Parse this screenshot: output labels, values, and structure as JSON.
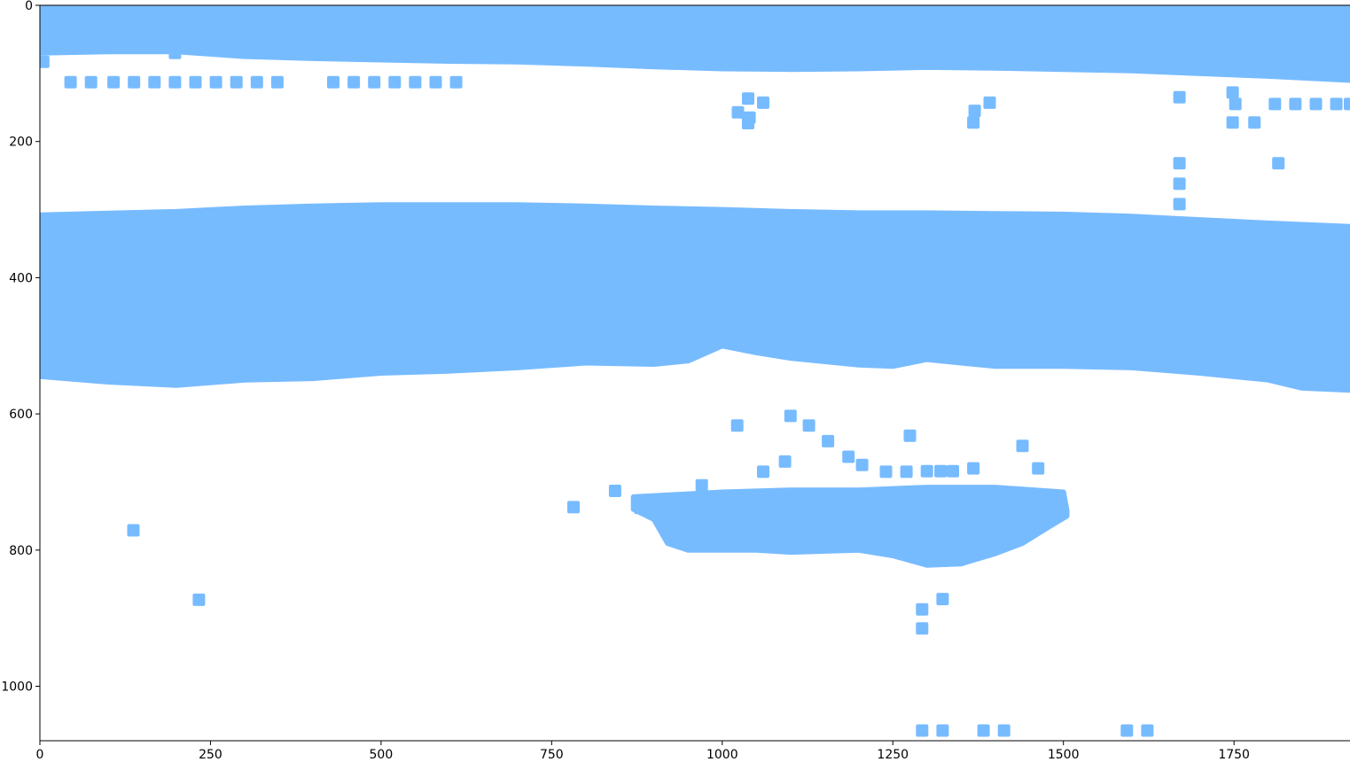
{
  "chart_data": {
    "type": "scatter",
    "title": "",
    "xlabel": "",
    "ylabel": "",
    "xlim": [
      0,
      1920
    ],
    "ylim": [
      1080,
      0
    ],
    "y_inverted": true,
    "grid": false,
    "legend": "none",
    "marker": "square",
    "color": "#77bbff",
    "x_ticks": [
      0,
      250,
      500,
      750,
      1000,
      1250,
      1500,
      1750
    ],
    "x_tick_labels": [
      "0",
      "250",
      "500",
      "750",
      "1000",
      "1250",
      "1500",
      "1750"
    ],
    "y_ticks": [
      0,
      200,
      400,
      600,
      800,
      1000
    ],
    "y_tick_labels": [
      "0",
      "200",
      "400",
      "600",
      "800",
      "1000"
    ],
    "bands": [
      {
        "top": [
          [
            0,
            0
          ],
          [
            1920,
            0
          ]
        ],
        "bottom": [
          [
            0,
            70
          ],
          [
            100,
            68
          ],
          [
            200,
            68
          ],
          [
            300,
            75
          ],
          [
            400,
            78
          ],
          [
            500,
            80
          ],
          [
            600,
            82
          ],
          [
            700,
            83
          ],
          [
            800,
            86
          ],
          [
            900,
            90
          ],
          [
            1000,
            93
          ],
          [
            1100,
            94
          ],
          [
            1200,
            93
          ],
          [
            1300,
            91
          ],
          [
            1400,
            92
          ],
          [
            1500,
            94
          ],
          [
            1600,
            96
          ],
          [
            1700,
            100
          ],
          [
            1800,
            104
          ],
          [
            1920,
            110
          ]
        ]
      },
      {
        "top": [
          [
            0,
            308
          ],
          [
            200,
            303
          ],
          [
            300,
            298
          ],
          [
            400,
            295
          ],
          [
            500,
            293
          ],
          [
            600,
            293
          ],
          [
            700,
            293
          ],
          [
            800,
            295
          ],
          [
            900,
            298
          ],
          [
            1000,
            300
          ],
          [
            1100,
            303
          ],
          [
            1200,
            305
          ],
          [
            1300,
            305
          ],
          [
            1400,
            306
          ],
          [
            1500,
            307
          ],
          [
            1600,
            310
          ],
          [
            1700,
            315
          ],
          [
            1800,
            320
          ],
          [
            1920,
            325
          ]
        ],
        "bottom": [
          [
            0,
            545
          ],
          [
            100,
            553
          ],
          [
            200,
            558
          ],
          [
            300,
            550
          ],
          [
            400,
            548
          ],
          [
            500,
            540
          ],
          [
            600,
            537
          ],
          [
            700,
            532
          ],
          [
            800,
            525
          ],
          [
            900,
            527
          ],
          [
            950,
            522
          ],
          [
            1000,
            500
          ],
          [
            1050,
            510
          ],
          [
            1100,
            518
          ],
          [
            1200,
            528
          ],
          [
            1250,
            530
          ],
          [
            1300,
            520
          ],
          [
            1350,
            525
          ],
          [
            1400,
            530
          ],
          [
            1500,
            530
          ],
          [
            1600,
            532
          ],
          [
            1700,
            540
          ],
          [
            1800,
            550
          ],
          [
            1850,
            562
          ],
          [
            1920,
            565
          ]
        ]
      },
      {
        "top": [
          [
            870,
            722
          ],
          [
            1000,
            715
          ],
          [
            1100,
            712
          ],
          [
            1200,
            712
          ],
          [
            1300,
            708
          ],
          [
            1400,
            708
          ],
          [
            1500,
            715
          ],
          [
            1505,
            742
          ]
        ],
        "bottom": [
          [
            1505,
            750
          ],
          [
            1480,
            765
          ],
          [
            1440,
            790
          ],
          [
            1400,
            805
          ],
          [
            1350,
            820
          ],
          [
            1300,
            822
          ],
          [
            1250,
            808
          ],
          [
            1200,
            800
          ],
          [
            1100,
            803
          ],
          [
            1050,
            800
          ],
          [
            950,
            800
          ],
          [
            920,
            790
          ],
          [
            900,
            755
          ],
          [
            870,
            740
          ]
        ]
      }
    ],
    "points": [
      [
        5,
        83
      ],
      [
        45,
        113
      ],
      [
        75,
        113
      ],
      [
        108,
        113
      ],
      [
        138,
        113
      ],
      [
        168,
        113
      ],
      [
        198,
        113
      ],
      [
        228,
        113
      ],
      [
        258,
        113
      ],
      [
        288,
        113
      ],
      [
        318,
        113
      ],
      [
        348,
        113
      ],
      [
        198,
        70
      ],
      [
        430,
        113
      ],
      [
        460,
        113
      ],
      [
        490,
        113
      ],
      [
        520,
        113
      ],
      [
        550,
        113
      ],
      [
        580,
        113
      ],
      [
        610,
        113
      ],
      [
        1023,
        157
      ],
      [
        1038,
        137
      ],
      [
        1040,
        165
      ],
      [
        1038,
        173
      ],
      [
        1060,
        143
      ],
      [
        1370,
        155
      ],
      [
        1368,
        172
      ],
      [
        1392,
        143
      ],
      [
        1670,
        135
      ],
      [
        1748,
        128
      ],
      [
        1752,
        145
      ],
      [
        1748,
        172
      ],
      [
        1780,
        172
      ],
      [
        1815,
        232
      ],
      [
        1670,
        232
      ],
      [
        1670,
        262
      ],
      [
        1670,
        292
      ],
      [
        1810,
        145
      ],
      [
        1840,
        145
      ],
      [
        1870,
        145
      ],
      [
        1900,
        145
      ],
      [
        1920,
        145
      ],
      [
        1022,
        617
      ],
      [
        1100,
        603
      ],
      [
        1127,
        617
      ],
      [
        1155,
        640
      ],
      [
        1185,
        663
      ],
      [
        1205,
        675
      ],
      [
        1240,
        685
      ],
      [
        1275,
        632
      ],
      [
        1300,
        684
      ],
      [
        1320,
        684
      ],
      [
        1338,
        684
      ],
      [
        1368,
        680
      ],
      [
        1440,
        647
      ],
      [
        1463,
        680
      ],
      [
        1060,
        685
      ],
      [
        1092,
        670
      ],
      [
        1270,
        685
      ],
      [
        782,
        737
      ],
      [
        843,
        713
      ],
      [
        970,
        705
      ],
      [
        880,
        738
      ],
      [
        137,
        771
      ],
      [
        233,
        873
      ],
      [
        1293,
        887
      ],
      [
        1323,
        872
      ],
      [
        1293,
        915
      ],
      [
        1293,
        1065
      ],
      [
        1323,
        1065
      ],
      [
        1383,
        1065
      ],
      [
        1413,
        1065
      ],
      [
        1593,
        1065
      ],
      [
        1623,
        1065
      ]
    ]
  }
}
